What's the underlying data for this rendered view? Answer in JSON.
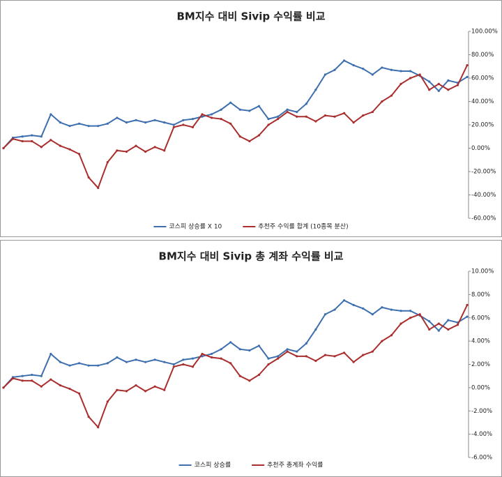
{
  "charts": [
    {
      "type": "line",
      "title": "BM지수 대비 Sivip 수익률 비교",
      "legend": "bottom",
      "ylim": [
        -60,
        100
      ],
      "yticks": [
        {
          "value": 100,
          "label": "100.00%"
        },
        {
          "value": 80,
          "label": "80.00%"
        },
        {
          "value": 60,
          "label": "60.00%"
        },
        {
          "value": 40,
          "label": "40.00%"
        },
        {
          "value": 20,
          "label": "20.00%"
        },
        {
          "value": 0,
          "label": "0.00%"
        },
        {
          "value": -20,
          "label": "-20.00%"
        },
        {
          "value": -40,
          "label": "-40.00%"
        },
        {
          "value": -60,
          "label": "-60.00%"
        }
      ],
      "series": [
        {
          "name": "코스피 상승률 X 10",
          "color": "#3d6fae",
          "values": [
            0,
            9,
            10,
            11,
            10,
            29,
            22,
            19,
            21,
            19,
            19,
            21,
            26,
            22,
            24,
            22,
            24,
            22,
            20,
            24,
            25,
            27,
            29,
            33,
            39,
            33,
            32,
            36,
            25,
            27,
            33,
            31,
            38,
            50,
            63,
            67,
            75,
            71,
            68,
            63,
            69,
            67,
            66,
            66,
            62,
            57,
            49,
            58,
            56,
            61
          ]
        },
        {
          "name": "추천주 수익률 합계 (10종목 분산)",
          "color": "#aa2e2e",
          "values": [
            0,
            8,
            6,
            6,
            1,
            7,
            2,
            -1,
            -5,
            -25,
            -34,
            -12,
            -2,
            -3,
            2,
            -3,
            1,
            -2,
            18,
            20,
            18,
            29,
            26,
            25,
            21,
            10,
            6,
            11,
            20,
            25,
            31,
            27,
            27,
            23,
            28,
            27,
            30,
            22,
            28,
            31,
            40,
            45,
            55,
            60,
            63,
            50,
            55,
            50,
            54,
            71
          ]
        }
      ]
    },
    {
      "type": "line",
      "title": "BM지수 대비 Sivip 총 계좌 수익률 비교",
      "legend": "bottom",
      "ylim": [
        -6,
        10
      ],
      "yticks": [
        {
          "value": 10,
          "label": "10.00%"
        },
        {
          "value": 8,
          "label": "8.00%"
        },
        {
          "value": 6,
          "label": "6.00%"
        },
        {
          "value": 4,
          "label": "4.00%"
        },
        {
          "value": 2,
          "label": "2.00%"
        },
        {
          "value": 0,
          "label": "0.00%"
        },
        {
          "value": -2,
          "label": "-2.00%"
        },
        {
          "value": -4,
          "label": "-4.00%"
        },
        {
          "value": -6,
          "label": "-6.00%"
        }
      ],
      "series": [
        {
          "name": "코스피 상승률",
          "color": "#3d6fae",
          "values": [
            0,
            0.9,
            1.0,
            1.1,
            1.0,
            2.9,
            2.2,
            1.9,
            2.1,
            1.9,
            1.9,
            2.1,
            2.6,
            2.2,
            2.4,
            2.2,
            2.4,
            2.2,
            2.0,
            2.4,
            2.5,
            2.7,
            2.9,
            3.3,
            3.9,
            3.3,
            3.2,
            3.6,
            2.5,
            2.7,
            3.3,
            3.1,
            3.8,
            5.0,
            6.3,
            6.7,
            7.5,
            7.1,
            6.8,
            6.3,
            6.9,
            6.7,
            6.6,
            6.6,
            6.2,
            5.7,
            4.9,
            5.8,
            5.6,
            6.1
          ]
        },
        {
          "name": "추천주 총계좌 수익률",
          "color": "#aa2e2e",
          "values": [
            0,
            0.8,
            0.6,
            0.6,
            0.1,
            0.7,
            0.2,
            -0.1,
            -0.5,
            -2.5,
            -3.4,
            -1.2,
            -0.2,
            -0.3,
            0.2,
            -0.3,
            0.1,
            -0.2,
            1.8,
            2.0,
            1.8,
            2.9,
            2.6,
            2.5,
            2.1,
            1.0,
            0.6,
            1.1,
            2.0,
            2.5,
            3.1,
            2.7,
            2.7,
            2.3,
            2.8,
            2.7,
            3.0,
            2.2,
            2.8,
            3.1,
            4.0,
            4.5,
            5.5,
            6.0,
            6.3,
            5.0,
            5.5,
            5.0,
            5.4,
            7.1
          ]
        }
      ]
    }
  ]
}
